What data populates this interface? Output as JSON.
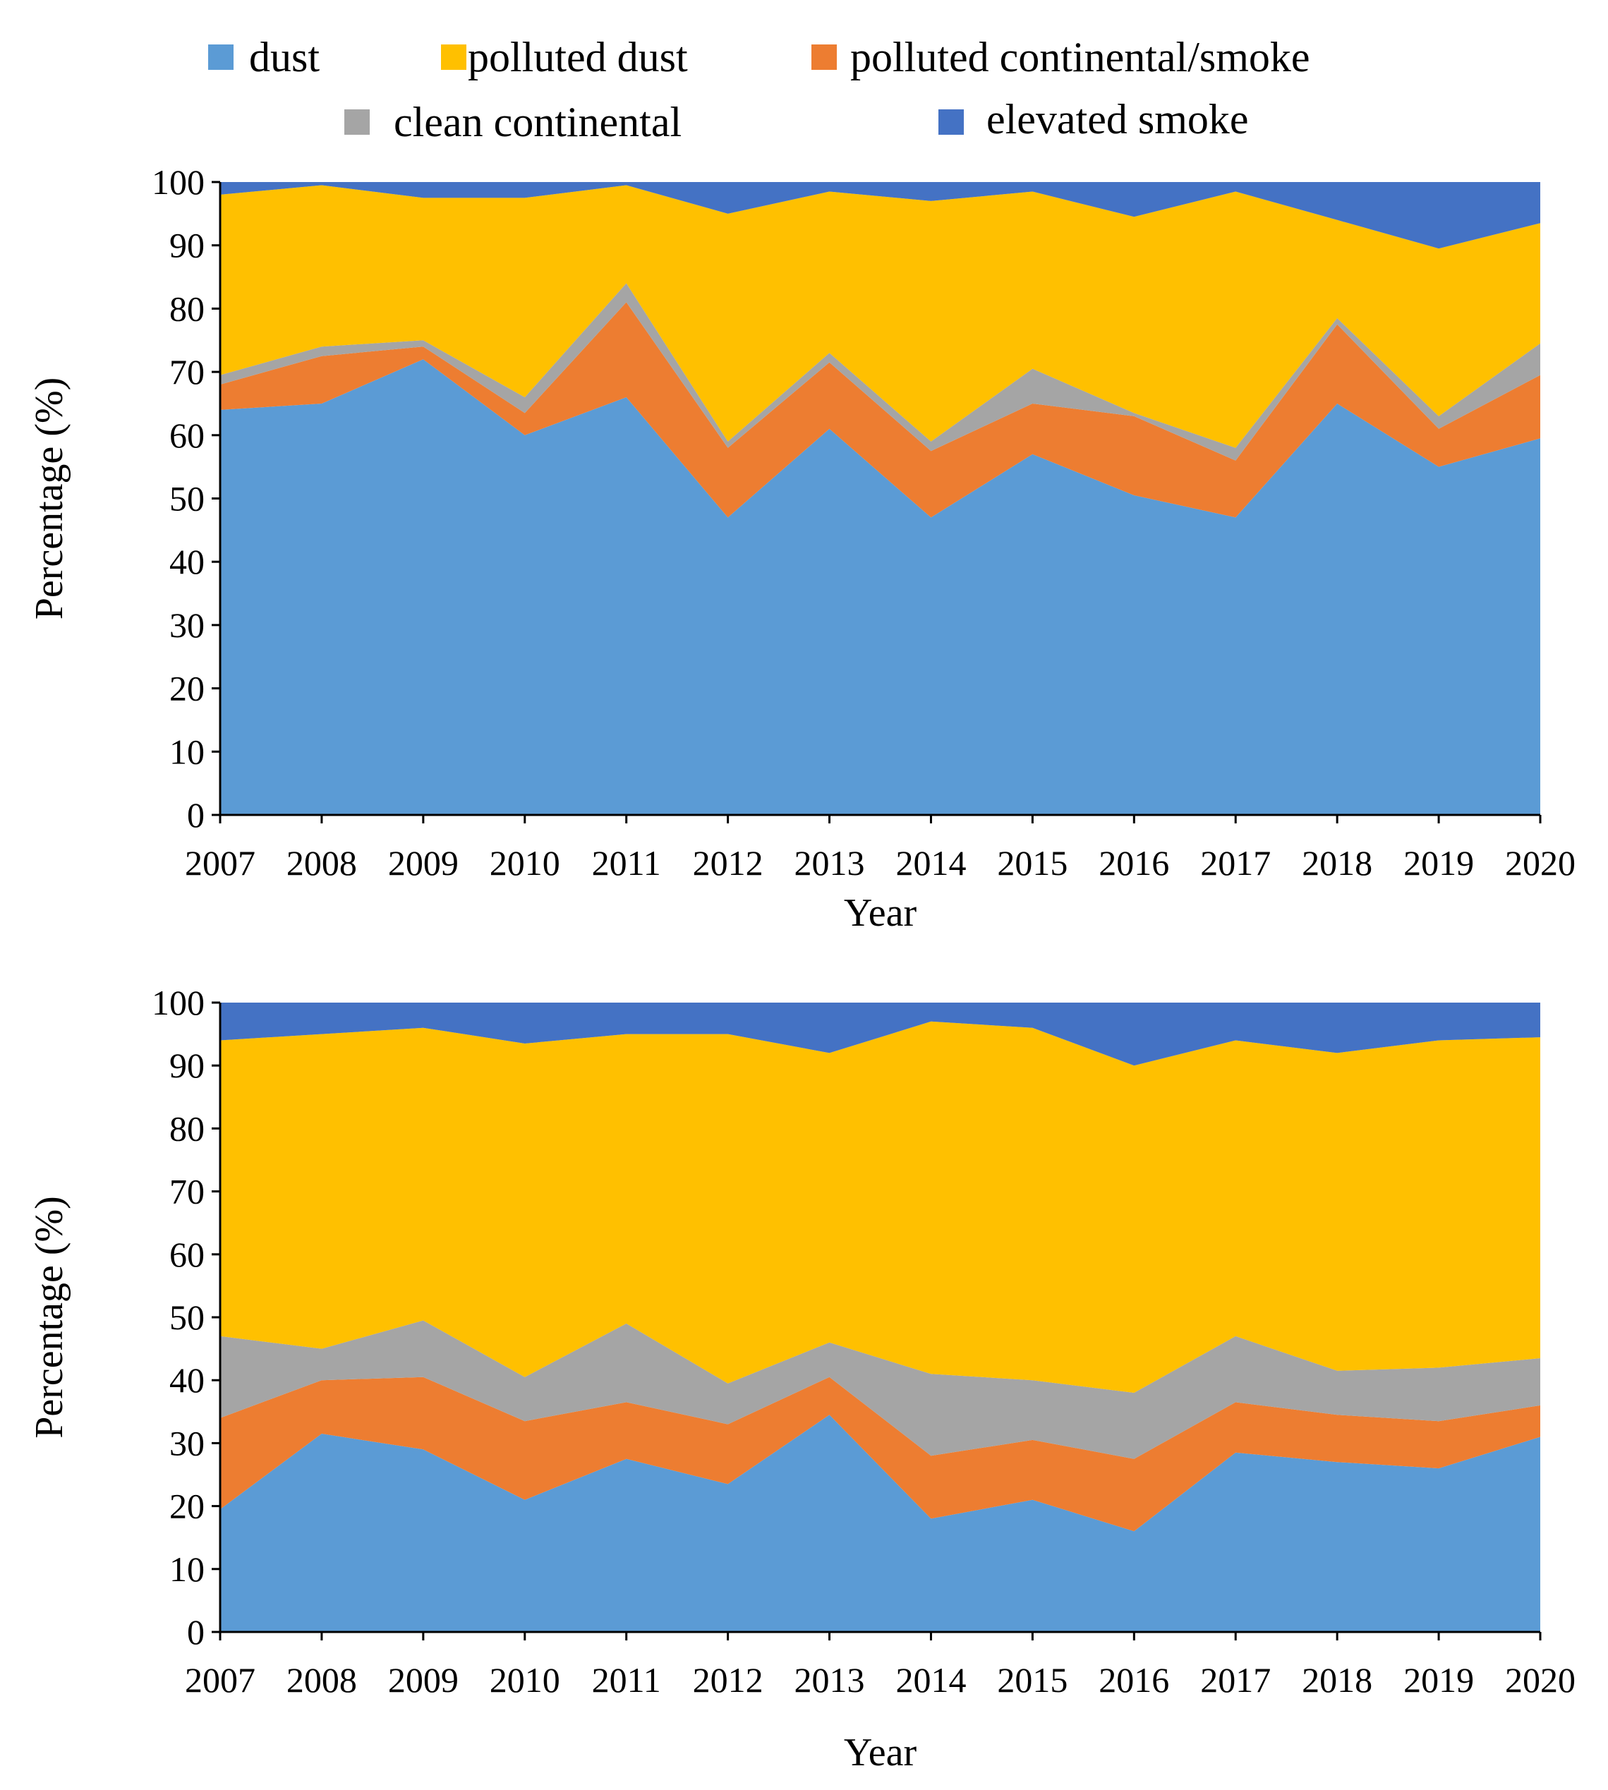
{
  "legend": [
    {
      "key": "dust",
      "label": "dust",
      "color": "#5B9BD5"
    },
    {
      "key": "polluted_dust",
      "label": "polluted dust",
      "color": "#FFC000"
    },
    {
      "key": "polluted_continental_smoke",
      "label": "polluted continental/smoke",
      "color": "#ED7D31"
    },
    {
      "key": "clean_continental",
      "label": "clean continental",
      "color": "#A5A5A5"
    },
    {
      "key": "elevated_smoke",
      "label": "elevated smoke",
      "color": "#4472C4"
    }
  ],
  "chart_data": [
    {
      "type": "area",
      "stacked": true,
      "title": "",
      "xlabel": "Year",
      "ylabel": "Percentage (%)",
      "ylim": [
        0,
        100
      ],
      "yticks": [
        "0",
        "10",
        "20",
        "30",
        "40",
        "50",
        "60",
        "70",
        "80",
        "90",
        "100"
      ],
      "categories": [
        "2007",
        "2008",
        "2009",
        "2010",
        "2011",
        "2012",
        "2013",
        "2014",
        "2015",
        "2016",
        "2017",
        "2018",
        "2019",
        "2020"
      ],
      "series": [
        {
          "name": "dust",
          "values": [
            64,
            65,
            72,
            60,
            66,
            47,
            61,
            47,
            57,
            50.5,
            47,
            65,
            55,
            59.5
          ]
        },
        {
          "name": "polluted continental/smoke",
          "values": [
            4,
            7.5,
            2,
            3.5,
            15,
            11,
            10.5,
            10.5,
            8,
            12.5,
            9,
            12.5,
            6,
            10
          ]
        },
        {
          "name": "clean continental",
          "values": [
            1.5,
            1.5,
            1,
            2.5,
            3,
            1,
            1.5,
            1.5,
            5.5,
            0.5,
            2,
            1,
            2,
            5
          ]
        },
        {
          "name": "polluted dust",
          "values": [
            28.5,
            25.5,
            22.5,
            31.5,
            15.5,
            36,
            25.5,
            38,
            28,
            31,
            40.5,
            15.5,
            26.5,
            19
          ]
        },
        {
          "name": "elevated smoke",
          "values": [
            2,
            0.5,
            2.5,
            2.5,
            0.5,
            5,
            1.5,
            3,
            1.5,
            5.5,
            1.5,
            6,
            10.5,
            6.5
          ]
        }
      ]
    },
    {
      "type": "area",
      "stacked": true,
      "title": "",
      "xlabel": "Year",
      "ylabel": "Percentage (%)",
      "ylim": [
        0,
        100
      ],
      "yticks": [
        "0",
        "10",
        "20",
        "30",
        "40",
        "50",
        "60",
        "70",
        "80",
        "90",
        "100"
      ],
      "categories": [
        "2007",
        "2008",
        "2009",
        "2010",
        "2011",
        "2012",
        "2013",
        "2014",
        "2015",
        "2016",
        "2017",
        "2018",
        "2019",
        "2020"
      ],
      "series": [
        {
          "name": "dust",
          "values": [
            19.5,
            31.5,
            29,
            21,
            27.5,
            23.5,
            34.5,
            18,
            21,
            16,
            28.5,
            27,
            26,
            31
          ]
        },
        {
          "name": "polluted continental/smoke",
          "values": [
            14.5,
            8.5,
            11.5,
            12.5,
            9,
            9.5,
            6,
            10,
            9.5,
            11.5,
            8,
            7.5,
            7.5,
            5
          ]
        },
        {
          "name": "clean continental",
          "values": [
            13,
            5,
            9,
            7,
            12.5,
            6.5,
            5.5,
            13,
            9.5,
            10.5,
            10.5,
            7,
            8.5,
            7.5
          ]
        },
        {
          "name": "polluted dust",
          "values": [
            47,
            50,
            46.5,
            53,
            46,
            55.5,
            46,
            56,
            56,
            52,
            47,
            50.5,
            52,
            51
          ]
        },
        {
          "name": "elevated smoke",
          "values": [
            6,
            5,
            4,
            6.5,
            5,
            5,
            8,
            3,
            4,
            10,
            6,
            8,
            6,
            5.5
          ]
        }
      ]
    }
  ]
}
